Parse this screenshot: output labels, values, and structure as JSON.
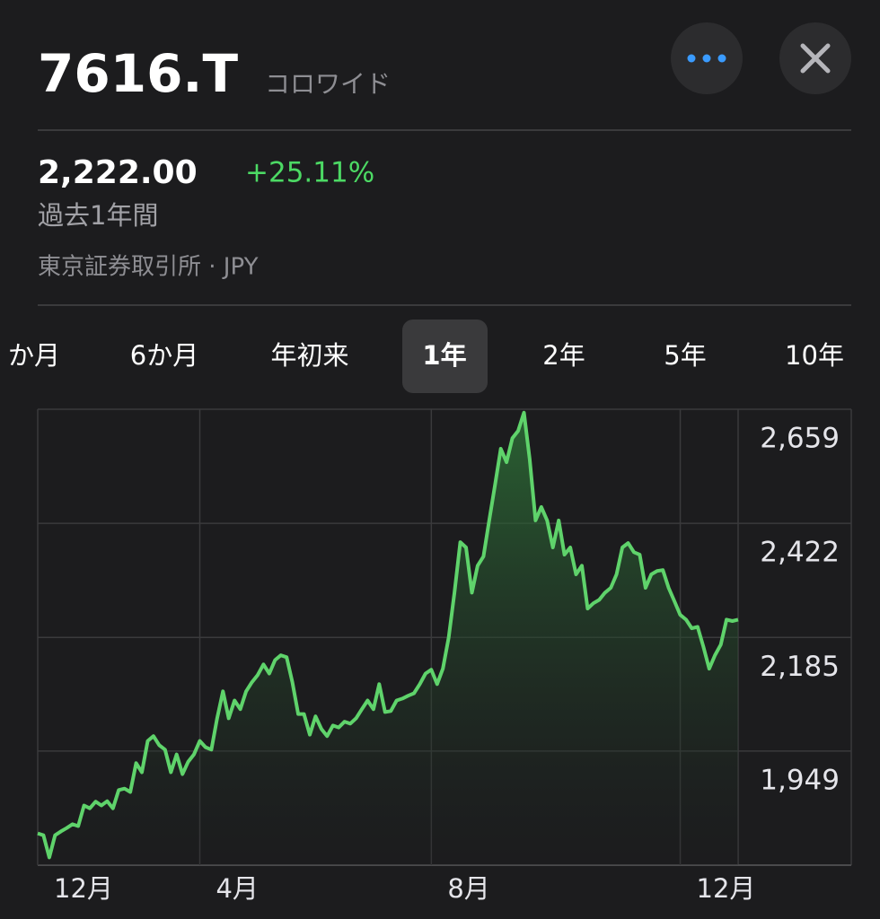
{
  "header": {
    "symbol": "7616.T",
    "name": "コロワイド"
  },
  "quote": {
    "price": "2,222.00",
    "change": "+25.11%",
    "period": "過去1年間",
    "exchange": "東京証券取引所 · JPY"
  },
  "ranges": [
    "か月",
    "6か月",
    "年初来",
    "1年",
    "2年",
    "5年",
    "10年"
  ],
  "selected_range": 3,
  "chart_data": {
    "type": "line",
    "color": "#5fd36b",
    "area": true,
    "grid": true,
    "values": [
      1778,
      1774,
      1728,
      1774,
      1782,
      1789,
      1797,
      1793,
      1836,
      1830,
      1844,
      1836,
      1845,
      1830,
      1868,
      1871,
      1864,
      1924,
      1905,
      1970,
      1980,
      1961,
      1952,
      1905,
      1942,
      1901,
      1927,
      1942,
      1970,
      1957,
      1952,
      2017,
      2073,
      2017,
      2054,
      2036,
      2073,
      2092,
      2107,
      2129,
      2110,
      2138,
      2148,
      2144,
      2092,
      2026,
      2026,
      1983,
      2021,
      1995,
      1980,
      2002,
      1998,
      2010,
      2006,
      2017,
      2036,
      2054,
      2036,
      2088,
      2030,
      2032,
      2054,
      2058,
      2064,
      2069,
      2088,
      2110,
      2118,
      2088,
      2120,
      2185,
      2278,
      2383,
      2372,
      2278,
      2334,
      2353,
      2428,
      2502,
      2577,
      2549,
      2599,
      2614,
      2652,
      2555,
      2428,
      2456,
      2428,
      2372,
      2428,
      2357,
      2372,
      2316,
      2334,
      2245,
      2256,
      2263,
      2278,
      2288,
      2316,
      2372,
      2381,
      2362,
      2357,
      2288,
      2316,
      2323,
      2325,
      2288,
      2260,
      2232,
      2222,
      2204,
      2207,
      2166,
      2120,
      2148,
      2170,
      2222,
      2219,
      2222
    ],
    "xlim": [
      0,
      121
    ],
    "xticks": [
      {
        "value": 0,
        "label": "12月"
      },
      {
        "value": 28,
        "label": "4月"
      },
      {
        "value": 68,
        "label": "8月"
      },
      {
        "value": 111,
        "label": "12月"
      }
    ],
    "ylim": [
      1712,
      2659
    ],
    "yticks": [
      {
        "value": 1949,
        "label": "1,949"
      },
      {
        "value": 2185,
        "label": "2,185"
      },
      {
        "value": 2422,
        "label": "2,422"
      },
      {
        "value": 2659,
        "label": "2,659"
      }
    ]
  }
}
